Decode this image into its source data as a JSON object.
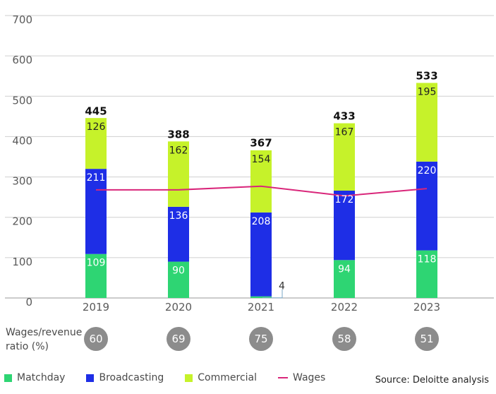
{
  "chart_data": {
    "type": "bar",
    "stacked": true,
    "categories": [
      "2019",
      "2020",
      "2021",
      "2022",
      "2023"
    ],
    "series": [
      {
        "name": "Matchday",
        "color": "#2ed573",
        "values": [
          109,
          90,
          4,
          94,
          118
        ]
      },
      {
        "name": "Broadcasting",
        "color": "#1e2ee6",
        "values": [
          211,
          136,
          208,
          172,
          220
        ]
      },
      {
        "name": "Commercial",
        "color": "#c6f22a",
        "values": [
          126,
          162,
          154,
          167,
          195
        ]
      }
    ],
    "totals": [
      445,
      388,
      367,
      433,
      533
    ],
    "line_series": {
      "name": "Wages",
      "color": "#d9267a",
      "values": [
        268,
        268,
        277,
        253,
        271
      ]
    },
    "wages_revenue_ratio": [
      60,
      69,
      75,
      58,
      51
    ],
    "ylim": [
      0,
      700
    ],
    "yticks": [
      0,
      100,
      200,
      300,
      400,
      500,
      600,
      700
    ],
    "grid": true,
    "legend_position": "bottom-left"
  },
  "ratio_label": "Wages/revenue ratio (%)",
  "source": "Source: Deloitte analysis"
}
